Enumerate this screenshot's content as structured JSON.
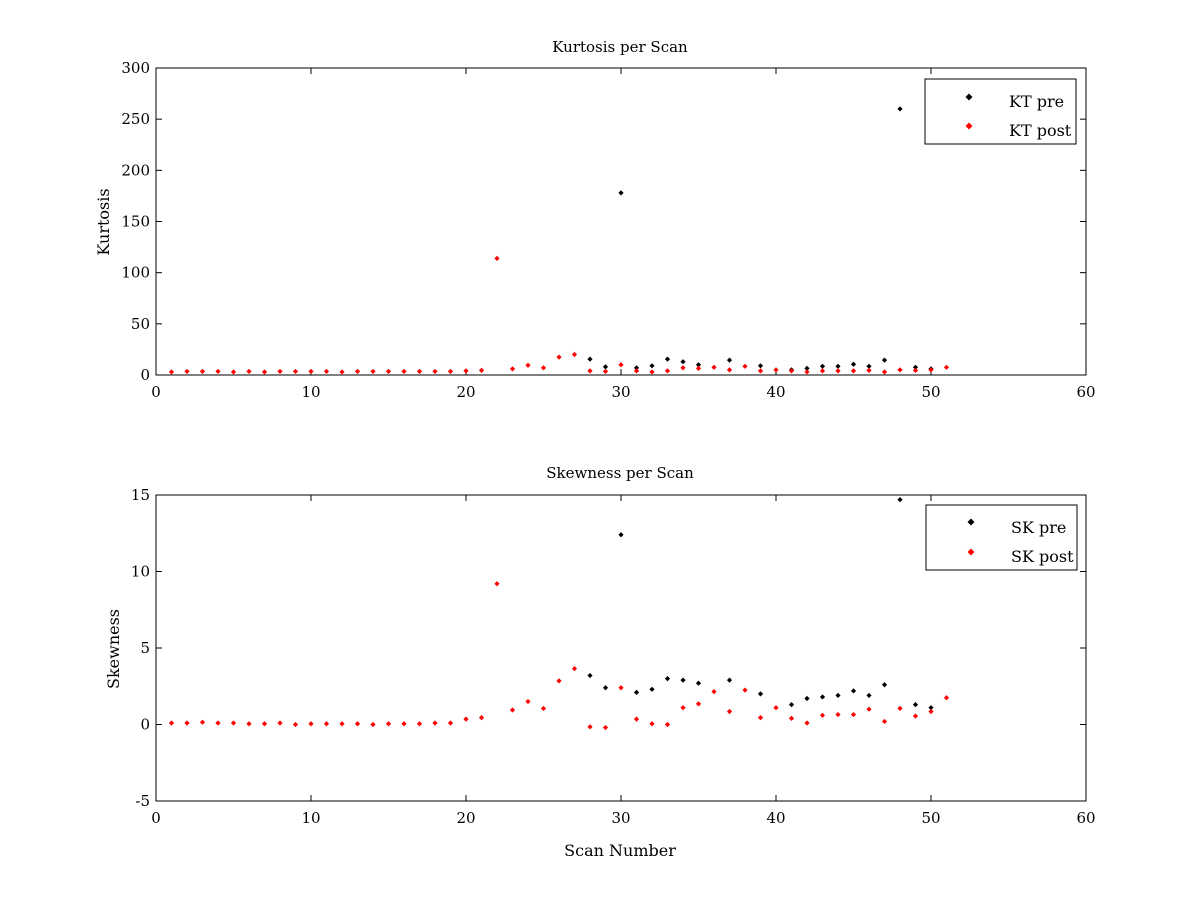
{
  "colors": {
    "pre": "#000000",
    "post": "#ff0000",
    "axis": "#000000",
    "background": "#ffffff"
  },
  "chart_data": [
    {
      "type": "scatter",
      "title": "Kurtosis per Scan",
      "xlabel": "",
      "ylabel": "Kurtosis",
      "xlim": [
        0,
        60
      ],
      "ylim": [
        0,
        300
      ],
      "xticks": [
        0,
        10,
        20,
        30,
        40,
        50,
        60
      ],
      "yticks": [
        0,
        50,
        100,
        150,
        200,
        250,
        300
      ],
      "grid": false,
      "legend_position": "top-right",
      "series": [
        {
          "name": "KT pre",
          "color": "#000000",
          "x": [
            28,
            29,
            30,
            31,
            32,
            33,
            34,
            35,
            37,
            39,
            41,
            42,
            43,
            44,
            45,
            46,
            47,
            48,
            49,
            50
          ],
          "y": [
            15.5,
            8,
            178,
            7,
            9,
            15.5,
            13,
            10,
            14.5,
            9,
            5,
            6.5,
            8.5,
            8.5,
            10.5,
            8.5,
            14.5,
            260,
            7.5,
            6
          ]
        },
        {
          "name": "KT post",
          "color": "#ff0000",
          "x": [
            1,
            2,
            3,
            4,
            5,
            6,
            7,
            8,
            9,
            10,
            11,
            12,
            13,
            14,
            15,
            16,
            17,
            18,
            19,
            20,
            21,
            22,
            23,
            24,
            25,
            26,
            27,
            28,
            29,
            30,
            31,
            32,
            33,
            34,
            35,
            36,
            37,
            38,
            39,
            40,
            41,
            42,
            43,
            44,
            45,
            46,
            47,
            48,
            49,
            50,
            51
          ],
          "y": [
            3,
            3.5,
            3.5,
            3.5,
            3,
            3.5,
            3,
            3.5,
            3.5,
            3.5,
            3.5,
            3,
            3.5,
            3.5,
            3.5,
            3.5,
            3.5,
            3.5,
            3.5,
            4,
            4.5,
            114,
            6,
            9.5,
            7,
            17.5,
            20,
            4,
            3.5,
            10,
            4,
            3,
            4,
            7,
            6.5,
            7.5,
            5,
            8.5,
            4,
            5,
            4,
            3,
            4,
            4,
            4,
            4.5,
            3,
            5,
            4.5,
            5,
            7.5
          ]
        }
      ]
    },
    {
      "type": "scatter",
      "title": "Skewness per Scan",
      "xlabel": "Scan Number",
      "ylabel": "Skewness",
      "xlim": [
        0,
        60
      ],
      "ylim": [
        -5,
        15
      ],
      "xticks": [
        0,
        10,
        20,
        30,
        40,
        50,
        60
      ],
      "yticks": [
        -5,
        0,
        5,
        10,
        15
      ],
      "grid": false,
      "legend_position": "top-right",
      "series": [
        {
          "name": "SK pre",
          "color": "#000000",
          "x": [
            28,
            29,
            30,
            31,
            32,
            33,
            34,
            35,
            37,
            39,
            41,
            42,
            43,
            44,
            45,
            46,
            47,
            48,
            49,
            50
          ],
          "y": [
            3.2,
            2.4,
            12.4,
            2.1,
            2.3,
            3,
            2.9,
            2.7,
            2.9,
            2,
            1.3,
            1.7,
            1.8,
            1.9,
            2.2,
            1.9,
            2.6,
            14.7,
            1.3,
            1.1
          ]
        },
        {
          "name": "SK post",
          "color": "#ff0000",
          "x": [
            1,
            2,
            3,
            4,
            5,
            6,
            7,
            8,
            9,
            10,
            11,
            12,
            13,
            14,
            15,
            16,
            17,
            18,
            19,
            20,
            21,
            22,
            23,
            24,
            25,
            26,
            27,
            28,
            29,
            30,
            31,
            32,
            33,
            34,
            35,
            36,
            37,
            38,
            39,
            40,
            41,
            42,
            43,
            44,
            45,
            46,
            47,
            48,
            49,
            50,
            51
          ],
          "y": [
            0.1,
            0.1,
            0.15,
            0.1,
            0.1,
            0.05,
            0.05,
            0.1,
            0,
            0.05,
            0.05,
            0.05,
            0.05,
            0,
            0.05,
            0.05,
            0.05,
            0.1,
            0.1,
            0.35,
            0.45,
            9.2,
            0.95,
            1.5,
            1.05,
            2.85,
            3.65,
            -0.15,
            -0.2,
            2.4,
            0.35,
            0.05,
            0,
            1.1,
            1.35,
            2.15,
            0.85,
            2.25,
            0.45,
            1.1,
            0.4,
            0.1,
            0.6,
            0.65,
            0.65,
            1,
            0.2,
            1.05,
            0.55,
            0.85,
            1.75
          ]
        }
      ]
    }
  ]
}
